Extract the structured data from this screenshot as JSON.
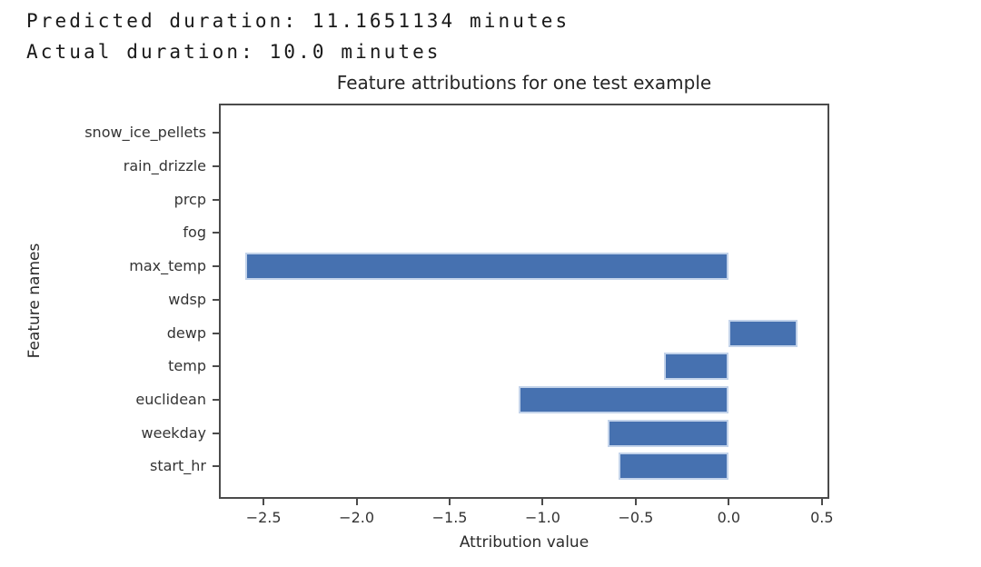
{
  "console": {
    "lines": [
      "Predicted duration: 11.1651134 minutes",
      "Actual duration: 10.0 minutes"
    ]
  },
  "chart_data": {
    "type": "bar",
    "orientation": "horizontal",
    "title": "Feature attributions for one test example",
    "xlabel": "Attribution value",
    "ylabel": "Feature names",
    "categories": [
      "snow_ice_pellets",
      "rain_drizzle",
      "prcp",
      "fog",
      "max_temp",
      "wdsp",
      "dewp",
      "temp",
      "euclidean",
      "weekday",
      "start_hr"
    ],
    "values": [
      0,
      0,
      0,
      0,
      -2.6,
      0,
      0.37,
      -0.35,
      -1.13,
      -0.65,
      -0.59
    ],
    "xlim": [
      -2.74,
      0.54
    ],
    "xticks": [
      -2.5,
      -2.0,
      -1.5,
      -1.0,
      -0.5,
      0.0,
      0.5
    ],
    "xtick_labels": [
      "−2.5",
      "−2.0",
      "−1.5",
      "−1.0",
      "−0.5",
      "0.0",
      "0.5"
    ],
    "grid": false,
    "legend": null,
    "bar_color": "#4671b0",
    "bar_edge_color": "#c3d3ea",
    "spine_color": "#4b4b4b",
    "text_color": "#343434"
  }
}
